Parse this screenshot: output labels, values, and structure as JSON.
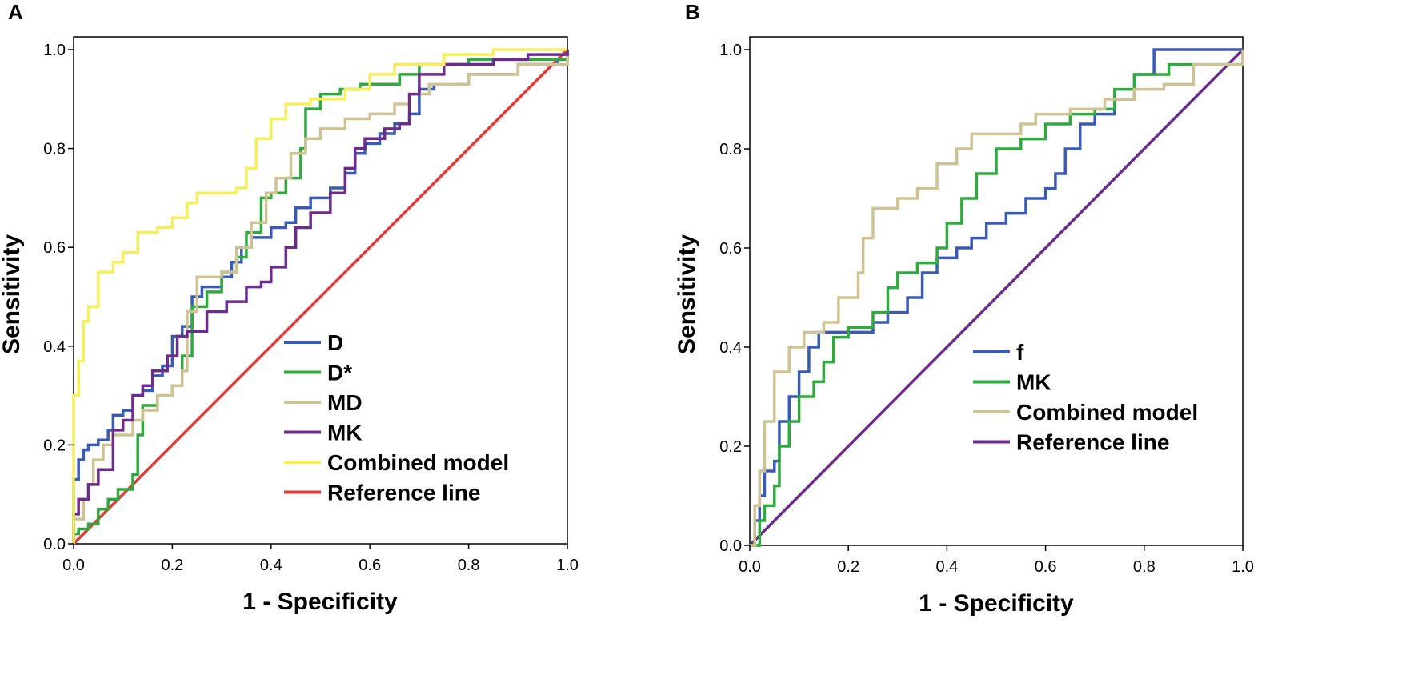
{
  "chart_data": [
    {
      "type": "line",
      "panel_label": "A",
      "title": "",
      "xlabel": "1 - Specificity",
      "ylabel": "Sensitivity",
      "xlim": [
        0,
        1
      ],
      "ylim": [
        0,
        1
      ],
      "x_ticks": [
        "0.0",
        "0.2",
        "0.4",
        "0.6",
        "0.8",
        "1.0"
      ],
      "y_ticks": [
        "0.0",
        "0.2",
        "0.4",
        "0.6",
        "0.8",
        "1.0"
      ],
      "grid": false,
      "legend_position": "lower-right",
      "series": [
        {
          "name": "D",
          "color": "#3a5bb5",
          "points": [
            [
              0,
              0
            ],
            [
              0,
              0.13
            ],
            [
              0.01,
              0.17
            ],
            [
              0.02,
              0.19
            ],
            [
              0.03,
              0.2
            ],
            [
              0.05,
              0.21
            ],
            [
              0.07,
              0.23
            ],
            [
              0.08,
              0.26
            ],
            [
              0.1,
              0.27
            ],
            [
              0.12,
              0.3
            ],
            [
              0.14,
              0.31
            ],
            [
              0.16,
              0.34
            ],
            [
              0.18,
              0.36
            ],
            [
              0.2,
              0.42
            ],
            [
              0.22,
              0.44
            ],
            [
              0.24,
              0.5
            ],
            [
              0.26,
              0.52
            ],
            [
              0.3,
              0.54
            ],
            [
              0.32,
              0.57
            ],
            [
              0.34,
              0.6
            ],
            [
              0.36,
              0.62
            ],
            [
              0.4,
              0.64
            ],
            [
              0.43,
              0.65
            ],
            [
              0.45,
              0.68
            ],
            [
              0.48,
              0.7
            ],
            [
              0.52,
              0.72
            ],
            [
              0.55,
              0.75
            ],
            [
              0.57,
              0.79
            ],
            [
              0.59,
              0.81
            ],
            [
              0.62,
              0.83
            ],
            [
              0.65,
              0.85
            ],
            [
              0.68,
              0.87
            ],
            [
              0.7,
              0.92
            ],
            [
              0.73,
              0.93
            ],
            [
              0.8,
              0.95
            ],
            [
              0.9,
              0.97
            ],
            [
              0.98,
              0.98
            ],
            [
              1,
              1
            ]
          ]
        },
        {
          "name": "D*",
          "color": "#2eaa3f",
          "points": [
            [
              0,
              0
            ],
            [
              0,
              0.02
            ],
            [
              0.01,
              0.03
            ],
            [
              0.03,
              0.04
            ],
            [
              0.05,
              0.07
            ],
            [
              0.07,
              0.09
            ],
            [
              0.09,
              0.11
            ],
            [
              0.12,
              0.14
            ],
            [
              0.13,
              0.22
            ],
            [
              0.14,
              0.28
            ],
            [
              0.17,
              0.3
            ],
            [
              0.2,
              0.32
            ],
            [
              0.22,
              0.38
            ],
            [
              0.24,
              0.48
            ],
            [
              0.27,
              0.51
            ],
            [
              0.3,
              0.55
            ],
            [
              0.33,
              0.58
            ],
            [
              0.35,
              0.63
            ],
            [
              0.38,
              0.7
            ],
            [
              0.4,
              0.71
            ],
            [
              0.43,
              0.74
            ],
            [
              0.46,
              0.8
            ],
            [
              0.47,
              0.88
            ],
            [
              0.5,
              0.91
            ],
            [
              0.54,
              0.92
            ],
            [
              0.58,
              0.93
            ],
            [
              0.66,
              0.95
            ],
            [
              0.7,
              0.97
            ],
            [
              0.8,
              0.98
            ],
            [
              0.9,
              0.98
            ],
            [
              1,
              1
            ]
          ]
        },
        {
          "name": "MD",
          "color": "#cfc394",
          "points": [
            [
              0,
              0
            ],
            [
              0,
              0.05
            ],
            [
              0.02,
              0.09
            ],
            [
              0.03,
              0.12
            ],
            [
              0.04,
              0.17
            ],
            [
              0.06,
              0.2
            ],
            [
              0.08,
              0.22
            ],
            [
              0.12,
              0.25
            ],
            [
              0.14,
              0.27
            ],
            [
              0.17,
              0.3
            ],
            [
              0.2,
              0.32
            ],
            [
              0.22,
              0.35
            ],
            [
              0.23,
              0.47
            ],
            [
              0.25,
              0.54
            ],
            [
              0.3,
              0.55
            ],
            [
              0.33,
              0.6
            ],
            [
              0.36,
              0.65
            ],
            [
              0.39,
              0.71
            ],
            [
              0.41,
              0.74
            ],
            [
              0.44,
              0.79
            ],
            [
              0.47,
              0.82
            ],
            [
              0.5,
              0.84
            ],
            [
              0.55,
              0.86
            ],
            [
              0.6,
              0.87
            ],
            [
              0.65,
              0.89
            ],
            [
              0.68,
              0.91
            ],
            [
              0.72,
              0.93
            ],
            [
              0.8,
              0.95
            ],
            [
              0.9,
              0.97
            ],
            [
              1,
              1
            ]
          ]
        },
        {
          "name": "MK",
          "color": "#6b2c8c",
          "points": [
            [
              0,
              0
            ],
            [
              0,
              0.06
            ],
            [
              0.01,
              0.09
            ],
            [
              0.03,
              0.12
            ],
            [
              0.05,
              0.15
            ],
            [
              0.08,
              0.23
            ],
            [
              0.1,
              0.25
            ],
            [
              0.12,
              0.3
            ],
            [
              0.14,
              0.32
            ],
            [
              0.16,
              0.35
            ],
            [
              0.19,
              0.38
            ],
            [
              0.21,
              0.42
            ],
            [
              0.23,
              0.43
            ],
            [
              0.27,
              0.47
            ],
            [
              0.31,
              0.49
            ],
            [
              0.35,
              0.52
            ],
            [
              0.38,
              0.53
            ],
            [
              0.4,
              0.56
            ],
            [
              0.43,
              0.6
            ],
            [
              0.45,
              0.64
            ],
            [
              0.48,
              0.67
            ],
            [
              0.52,
              0.71
            ],
            [
              0.55,
              0.76
            ],
            [
              0.57,
              0.8
            ],
            [
              0.59,
              0.82
            ],
            [
              0.63,
              0.84
            ],
            [
              0.66,
              0.85
            ],
            [
              0.68,
              0.91
            ],
            [
              0.7,
              0.95
            ],
            [
              0.75,
              0.97
            ],
            [
              0.85,
              0.98
            ],
            [
              0.92,
              0.99
            ],
            [
              1,
              1
            ]
          ]
        },
        {
          "name": "Combined model",
          "color": "#f6ef5a",
          "points": [
            [
              0,
              0
            ],
            [
              0,
              0.3
            ],
            [
              0.01,
              0.37
            ],
            [
              0.02,
              0.45
            ],
            [
              0.03,
              0.48
            ],
            [
              0.05,
              0.55
            ],
            [
              0.08,
              0.57
            ],
            [
              0.1,
              0.59
            ],
            [
              0.13,
              0.63
            ],
            [
              0.17,
              0.64
            ],
            [
              0.2,
              0.66
            ],
            [
              0.23,
              0.69
            ],
            [
              0.25,
              0.71
            ],
            [
              0.3,
              0.71
            ],
            [
              0.33,
              0.72
            ],
            [
              0.35,
              0.76
            ],
            [
              0.37,
              0.82
            ],
            [
              0.4,
              0.86
            ],
            [
              0.43,
              0.89
            ],
            [
              0.48,
              0.9
            ],
            [
              0.55,
              0.92
            ],
            [
              0.6,
              0.95
            ],
            [
              0.65,
              0.97
            ],
            [
              0.75,
              0.99
            ],
            [
              0.85,
              1
            ],
            [
              1,
              1
            ]
          ]
        },
        {
          "name": "Reference line",
          "color": "#e53a3a",
          "points": [
            [
              0,
              0
            ],
            [
              1,
              1
            ]
          ]
        }
      ]
    },
    {
      "type": "line",
      "panel_label": "B",
      "title": "",
      "xlabel": "1 - Specificity",
      "ylabel": "Sensitivity",
      "xlim": [
        0,
        1
      ],
      "ylim": [
        0,
        1
      ],
      "x_ticks": [
        "0.0",
        "0.2",
        "0.4",
        "0.6",
        "0.8",
        "1.0"
      ],
      "y_ticks": [
        "0.0",
        "0.2",
        "0.4",
        "0.6",
        "0.8",
        "1.0"
      ],
      "grid": false,
      "legend_position": "lower-right",
      "series": [
        {
          "name": "f",
          "color": "#3a5bb5",
          "points": [
            [
              0,
              0
            ],
            [
              0.01,
              0.05
            ],
            [
              0.02,
              0.1
            ],
            [
              0.03,
              0.15
            ],
            [
              0.05,
              0.17
            ],
            [
              0.06,
              0.25
            ],
            [
              0.08,
              0.3
            ],
            [
              0.1,
              0.35
            ],
            [
              0.12,
              0.4
            ],
            [
              0.14,
              0.43
            ],
            [
              0.2,
              0.43
            ],
            [
              0.25,
              0.45
            ],
            [
              0.28,
              0.47
            ],
            [
              0.32,
              0.5
            ],
            [
              0.35,
              0.55
            ],
            [
              0.38,
              0.58
            ],
            [
              0.42,
              0.6
            ],
            [
              0.45,
              0.62
            ],
            [
              0.48,
              0.65
            ],
            [
              0.52,
              0.67
            ],
            [
              0.56,
              0.7
            ],
            [
              0.6,
              0.72
            ],
            [
              0.62,
              0.75
            ],
            [
              0.64,
              0.8
            ],
            [
              0.67,
              0.85
            ],
            [
              0.7,
              0.87
            ],
            [
              0.74,
              0.9
            ],
            [
              0.78,
              0.95
            ],
            [
              0.82,
              1
            ],
            [
              1,
              1
            ]
          ]
        },
        {
          "name": "MK",
          "color": "#2eaa3f",
          "points": [
            [
              0,
              0
            ],
            [
              0.02,
              0.05
            ],
            [
              0.03,
              0.08
            ],
            [
              0.05,
              0.12
            ],
            [
              0.06,
              0.2
            ],
            [
              0.08,
              0.25
            ],
            [
              0.1,
              0.3
            ],
            [
              0.13,
              0.33
            ],
            [
              0.15,
              0.37
            ],
            [
              0.17,
              0.42
            ],
            [
              0.2,
              0.44
            ],
            [
              0.25,
              0.47
            ],
            [
              0.28,
              0.52
            ],
            [
              0.3,
              0.55
            ],
            [
              0.34,
              0.57
            ],
            [
              0.38,
              0.6
            ],
            [
              0.4,
              0.65
            ],
            [
              0.43,
              0.7
            ],
            [
              0.46,
              0.75
            ],
            [
              0.5,
              0.8
            ],
            [
              0.55,
              0.82
            ],
            [
              0.6,
              0.85
            ],
            [
              0.65,
              0.87
            ],
            [
              0.7,
              0.88
            ],
            [
              0.74,
              0.92
            ],
            [
              0.78,
              0.95
            ],
            [
              0.85,
              0.97
            ],
            [
              1,
              1
            ]
          ]
        },
        {
          "name": "Combined model",
          "color": "#cfc394",
          "points": [
            [
              0,
              0
            ],
            [
              0.01,
              0.08
            ],
            [
              0.02,
              0.15
            ],
            [
              0.03,
              0.25
            ],
            [
              0.05,
              0.35
            ],
            [
              0.08,
              0.4
            ],
            [
              0.11,
              0.43
            ],
            [
              0.15,
              0.45
            ],
            [
              0.18,
              0.5
            ],
            [
              0.22,
              0.55
            ],
            [
              0.23,
              0.62
            ],
            [
              0.25,
              0.68
            ],
            [
              0.3,
              0.7
            ],
            [
              0.34,
              0.72
            ],
            [
              0.38,
              0.77
            ],
            [
              0.42,
              0.8
            ],
            [
              0.45,
              0.83
            ],
            [
              0.5,
              0.83
            ],
            [
              0.55,
              0.85
            ],
            [
              0.58,
              0.87
            ],
            [
              0.65,
              0.88
            ],
            [
              0.72,
              0.9
            ],
            [
              0.78,
              0.92
            ],
            [
              0.84,
              0.93
            ],
            [
              0.9,
              0.97
            ],
            [
              1,
              1
            ]
          ]
        },
        {
          "name": "Reference line",
          "color": "#6b2c8c",
          "points": [
            [
              0,
              0
            ],
            [
              1,
              1
            ]
          ]
        }
      ]
    }
  ]
}
